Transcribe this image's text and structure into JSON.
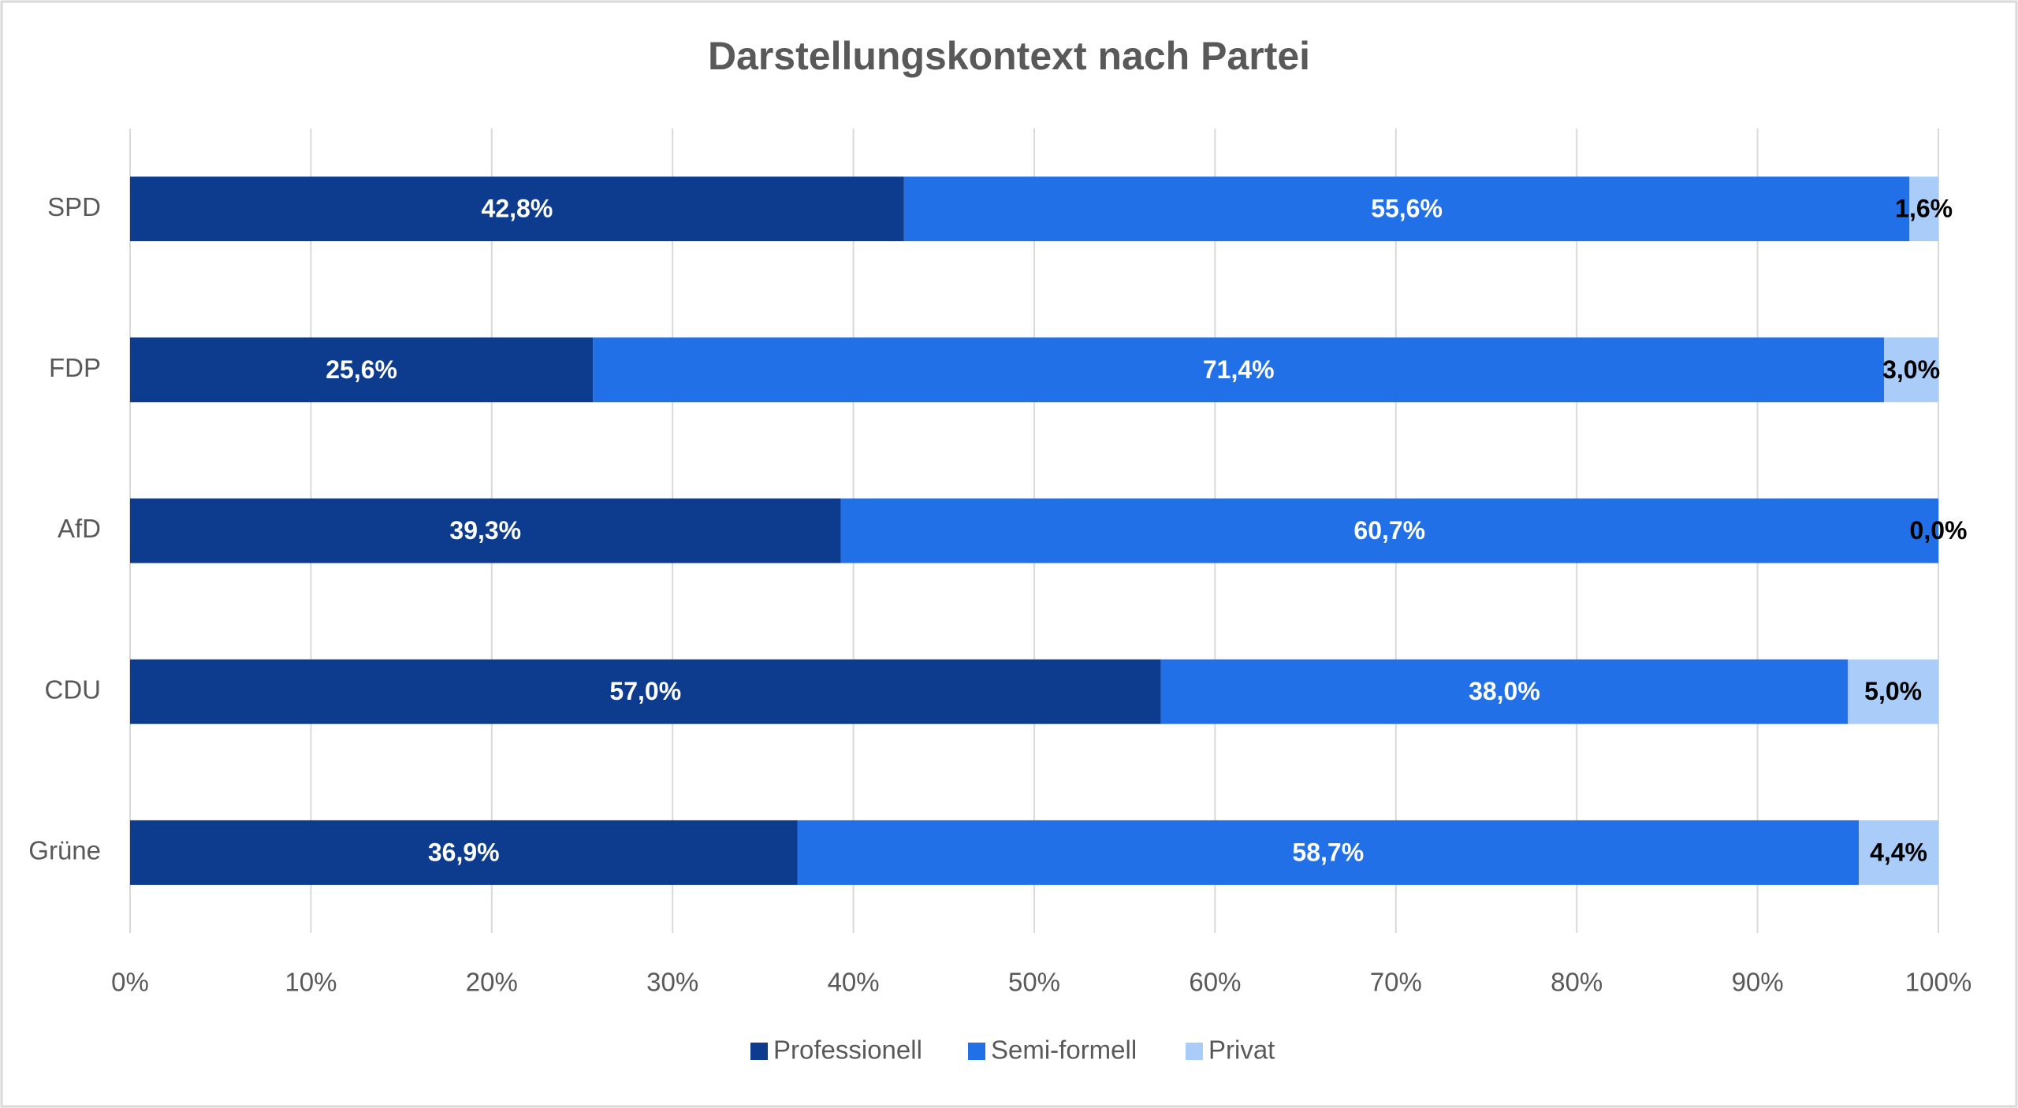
{
  "chart_data": {
    "type": "stacked_bar_horizontal",
    "title": "Darstellungskontext nach Partei",
    "categories": [
      "SPD",
      "FDP",
      "AfD",
      "CDU",
      "Grüne"
    ],
    "series": [
      {
        "name": "Professionell",
        "color": "#0d3b8e",
        "label_color": "#ffffff",
        "values": [
          42.8,
          25.6,
          39.3,
          57.0,
          36.9
        ],
        "value_labels": [
          "42,8%",
          "25,6%",
          "39,3%",
          "57,0%",
          "36,9%"
        ]
      },
      {
        "name": "Semi-formell",
        "color": "#2170e8",
        "label_color": "#ffffff",
        "values": [
          55.6,
          71.4,
          60.7,
          38.0,
          58.7
        ],
        "value_labels": [
          "55,6%",
          "71,4%",
          "60,7%",
          "38,0%",
          "58,7%"
        ]
      },
      {
        "name": "Privat",
        "color": "#a9cdf8",
        "label_color": "#000000",
        "values": [
          1.6,
          3.0,
          0.0,
          5.0,
          4.4
        ],
        "value_labels": [
          "1,6%",
          "3,0%",
          "0,0%",
          "5,0%",
          "4,4%"
        ]
      }
    ],
    "xlim": [
      0,
      100
    ],
    "xticks": [
      {
        "value": 0,
        "label": "0%"
      },
      {
        "value": 10,
        "label": "10%"
      },
      {
        "value": 20,
        "label": "20%"
      },
      {
        "value": 30,
        "label": "30%"
      },
      {
        "value": 40,
        "label": "40%"
      },
      {
        "value": 50,
        "label": "50%"
      },
      {
        "value": 60,
        "label": "60%"
      },
      {
        "value": 70,
        "label": "70%"
      },
      {
        "value": 80,
        "label": "80%"
      },
      {
        "value": 90,
        "label": "90%"
      },
      {
        "value": 100,
        "label": "100%"
      }
    ],
    "grid": true,
    "legend": "bottom"
  }
}
